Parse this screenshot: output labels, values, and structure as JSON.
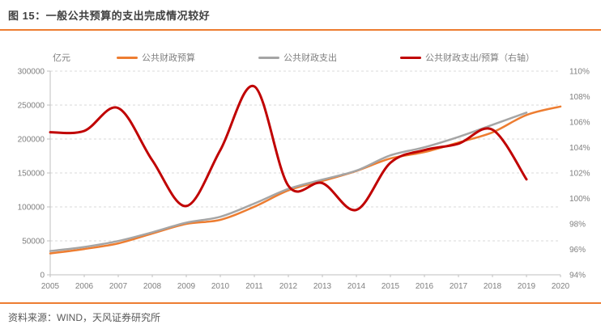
{
  "header": {
    "title": "图 15：一般公共预算的支出完成情况较好"
  },
  "footer": {
    "source": "资料来源：WIND，天风证券研究所"
  },
  "colors": {
    "accent": "#ED7D31",
    "grid": "#D9D9D9",
    "axis": "#BFBFBF",
    "tick_text": "#7F7F7F",
    "title_text": "#404040",
    "legend_text": "#808080",
    "source_text": "#595959"
  },
  "chart_data": {
    "type": "line",
    "title": "一般公共预算的支出完成情况较好",
    "unit_label": "亿元",
    "grid": "horizontal-dashed",
    "legend_position": "top",
    "x_axis": {
      "min": 2005,
      "max": 2020,
      "tick_labels": [
        "2005",
        "2006",
        "2007",
        "2008",
        "2009",
        "2010",
        "2011",
        "2012",
        "2013",
        "2014",
        "2015",
        "2016",
        "2017",
        "2018",
        "2019",
        "2020"
      ]
    },
    "left_axis": {
      "min": 0,
      "max": 300000,
      "step": 50000,
      "tick_labels": [
        "0",
        "50000",
        "100000",
        "150000",
        "200000",
        "250000",
        "300000"
      ]
    },
    "right_axis": {
      "min": 94,
      "max": 110,
      "step": 2,
      "tick_labels": [
        "94%",
        "96%",
        "98%",
        "100%",
        "102%",
        "104%",
        "106%",
        "108%",
        "110%"
      ]
    },
    "series": [
      {
        "name": "公共财政预算",
        "axis": "left",
        "color": "#ED7D31",
        "x": [
          2005,
          2006,
          2007,
          2008,
          2009,
          2010,
          2011,
          2012,
          2013,
          2014,
          2015,
          2016,
          2017,
          2018,
          2019,
          2020
        ],
        "values": [
          31500,
          38000,
          46300,
          60800,
          75000,
          81000,
          100200,
          124300,
          138200,
          153000,
          171300,
          180700,
          194900,
          209800,
          235400,
          247900
        ]
      },
      {
        "name": "公共财政支出",
        "axis": "left",
        "color": "#A5A5A5",
        "x": [
          2005,
          2006,
          2007,
          2008,
          2009,
          2010,
          2011,
          2012,
          2013,
          2014,
          2015,
          2016,
          2017,
          2018,
          2019
        ],
        "values": [
          35000,
          41000,
          49800,
          62600,
          76800,
          85500,
          105000,
          126500,
          140200,
          153500,
          175900,
          187800,
          203100,
          220900,
          238900
        ]
      },
      {
        "name": "公共财政支出/预算（右轴）",
        "axis": "right",
        "color": "#C00000",
        "x": [
          2005,
          2006,
          2007,
          2008,
          2009,
          2010,
          2011,
          2012,
          2013,
          2014,
          2015,
          2016,
          2017,
          2018,
          2019
        ],
        "values": [
          105.2,
          105.3,
          107.1,
          103.0,
          99.4,
          103.8,
          108.8,
          101.0,
          101.2,
          99.1,
          102.8,
          103.8,
          104.3,
          105.4,
          101.5
        ]
      }
    ]
  }
}
